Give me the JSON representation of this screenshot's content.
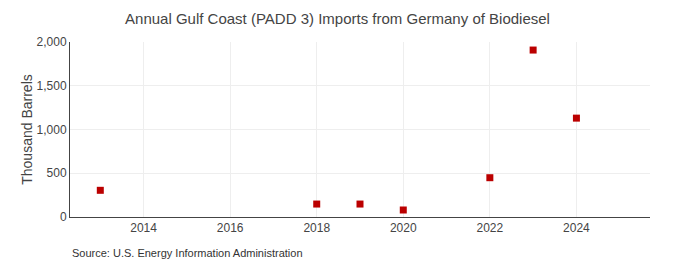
{
  "chart_data": {
    "type": "scatter",
    "title": "Annual Gulf Coast (PADD 3) Imports from Germany of Biodiesel",
    "ylabel": "Thousand Barrels",
    "annotations": [
      "Source: U.S. Energy Information Administration"
    ],
    "x": [
      2013,
      2018,
      2019,
      2020,
      2022,
      2023,
      2024
    ],
    "values": [
      305,
      148,
      148,
      80,
      449,
      1908,
      1130
    ],
    "color": "#bb0000",
    "marker": "square",
    "xlim": [
      2012.3,
      2025.7
    ],
    "xticks": [
      2014,
      2016,
      2018,
      2020,
      2022,
      2024
    ],
    "ylim": [
      0,
      2000
    ],
    "yticks": [
      0,
      500,
      {
        "value": 1000,
        "label": "1,000"
      },
      {
        "value": 1500,
        "label": "1,500"
      },
      {
        "value": 2000,
        "label": "2,000"
      }
    ],
    "grid": true
  }
}
